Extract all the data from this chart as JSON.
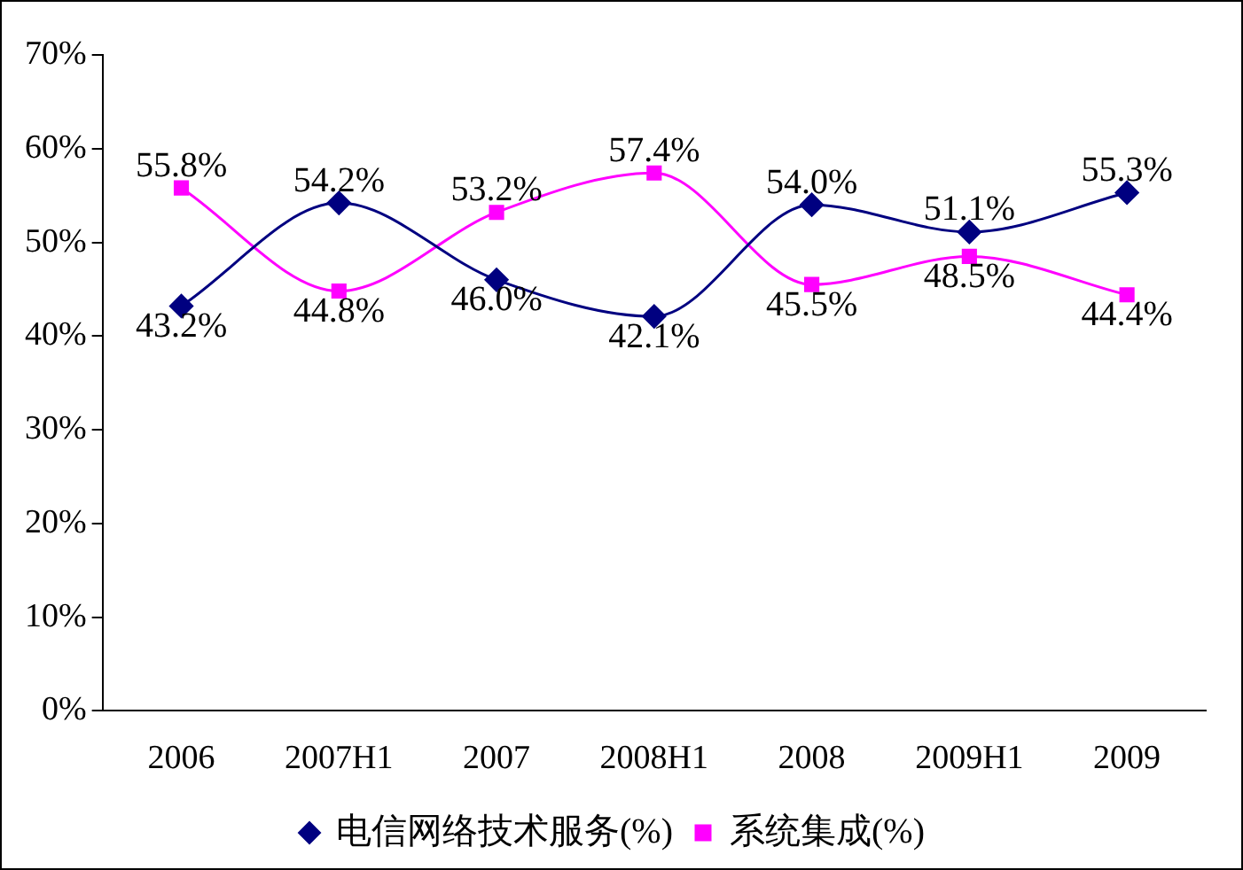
{
  "chart_data": {
    "type": "line",
    "categories": [
      "2006",
      "2007H1",
      "2007",
      "2008H1",
      "2008",
      "2009H1",
      "2009"
    ],
    "series": [
      {
        "name": "电信网络技术服务(%)",
        "color": "#000080",
        "marker": "diamond",
        "values": [
          43.2,
          54.2,
          46.0,
          42.1,
          54.0,
          51.1,
          55.3
        ],
        "value_labels": [
          "43.2%",
          "54.2%",
          "46.0%",
          "42.1%",
          "54.0%",
          "51.1%",
          "55.3%"
        ]
      },
      {
        "name": "系统集成(%)",
        "color": "#ff00ff",
        "marker": "square",
        "values": [
          55.8,
          44.8,
          53.2,
          57.4,
          45.5,
          48.5,
          44.4
        ],
        "value_labels": [
          "55.8%",
          "44.8%",
          "53.2%",
          "57.4%",
          "45.5%",
          "48.5%",
          "44.4%"
        ]
      }
    ],
    "ylim": [
      0,
      70
    ],
    "yticks": [
      {
        "value": 0,
        "label": "0%"
      },
      {
        "value": 10,
        "label": "10%"
      },
      {
        "value": 20,
        "label": "20%"
      },
      {
        "value": 30,
        "label": "30%"
      },
      {
        "value": 40,
        "label": "40%"
      },
      {
        "value": 50,
        "label": "50%"
      },
      {
        "value": 60,
        "label": "60%"
      },
      {
        "value": 70,
        "label": "70%"
      }
    ],
    "grid": false,
    "legend": "bottom"
  }
}
